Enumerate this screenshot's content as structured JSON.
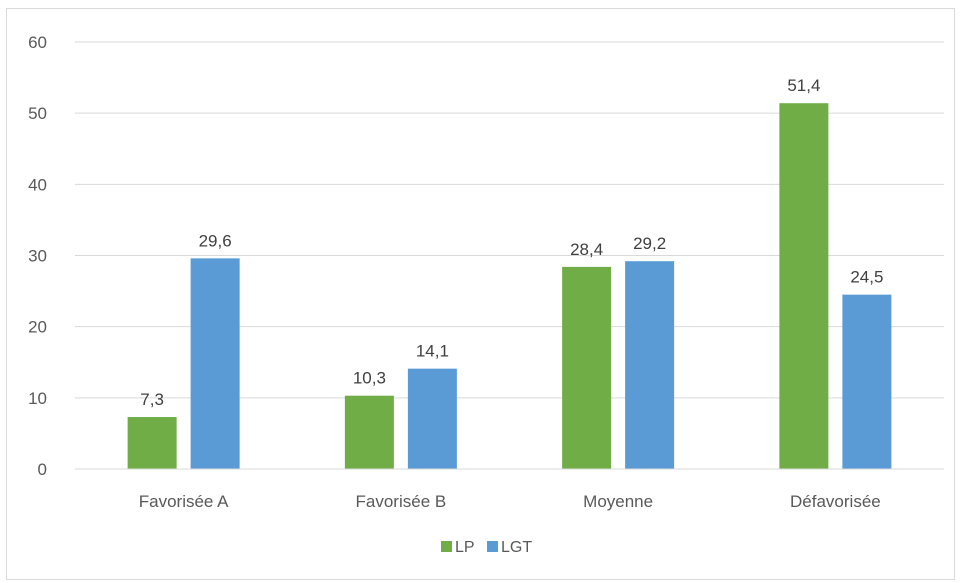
{
  "chart_data": {
    "type": "bar",
    "categories": [
      "Favorisée A",
      "Favorisée B",
      "Moyenne",
      "Défavorisée"
    ],
    "series": [
      {
        "name": "LP",
        "color": "#70ad47",
        "values": [
          7.3,
          10.3,
          28.4,
          51.4
        ],
        "labels": [
          "7,3",
          "10,3",
          "28,4",
          "51,4"
        ]
      },
      {
        "name": "LGT",
        "color": "#5b9bd5",
        "values": [
          29.6,
          14.1,
          29.2,
          24.5
        ],
        "labels": [
          "29,6",
          "14,1",
          "29,2",
          "24,5"
        ]
      }
    ],
    "ylim": [
      0,
      60
    ],
    "yticks": [
      "0",
      "10",
      "20",
      "30",
      "40",
      "50",
      "60"
    ],
    "grid": true,
    "legend": "bottom",
    "title": "",
    "xlabel": "",
    "ylabel": ""
  }
}
